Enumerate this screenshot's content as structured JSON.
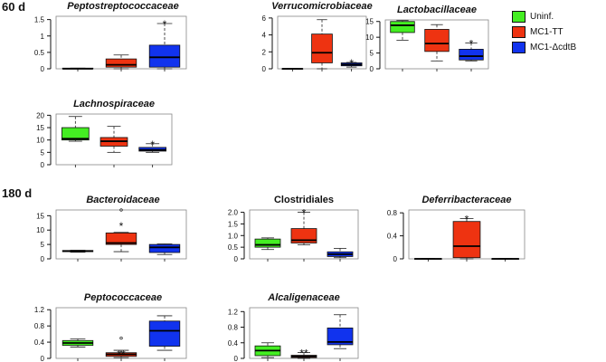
{
  "section_labels": {
    "top": "60 d",
    "bottom": "180 d"
  },
  "legend": [
    {
      "label": "Uninf.",
      "color": "#44ee22"
    },
    {
      "label": "MC1-TT",
      "color": "#ee3311"
    },
    {
      "label": "MC1-ΔcdtB",
      "color": "#1133ee"
    }
  ],
  "chart_data": [
    {
      "type": "box",
      "section": "60 d",
      "title": "Peptostreptococcaceae",
      "italic": true,
      "ylim": [
        0,
        1.6
      ],
      "yticks": [
        "0",
        "0.5",
        "1",
        "1.5"
      ],
      "ytick_values": [
        0,
        0.5,
        1,
        1.5
      ],
      "groups": [
        {
          "name": "Uninf.",
          "whisker_low": 0,
          "q1": 0,
          "median": 0,
          "q3": 0.02,
          "whisker_high": 0.02,
          "outliers": [],
          "sig": ""
        },
        {
          "name": "MC1-TT",
          "whisker_low": 0,
          "q1": 0.05,
          "median": 0.12,
          "q3": 0.3,
          "whisker_high": 0.42,
          "outliers": [],
          "sig": ""
        },
        {
          "name": "MC1-ΔcdtB",
          "whisker_low": 0,
          "q1": 0.05,
          "median": 0.35,
          "q3": 0.72,
          "whisker_high": 1.38,
          "outliers": [],
          "sig": "*"
        }
      ]
    },
    {
      "type": "box",
      "section": "60 d",
      "title": "Verrucomicrobiaceae",
      "italic": true,
      "ylim": [
        0,
        6.2
      ],
      "yticks": [
        "0",
        "2",
        "4",
        "6"
      ],
      "ytick_values": [
        0,
        2,
        4,
        6
      ],
      "groups": [
        {
          "name": "Uninf.",
          "whisker_low": 0,
          "q1": 0,
          "median": 0,
          "q3": 0.03,
          "whisker_high": 0.03,
          "outliers": [],
          "sig": ""
        },
        {
          "name": "MC1-TT",
          "whisker_low": 0,
          "q1": 0.7,
          "median": 1.9,
          "q3": 4.1,
          "whisker_high": 5.8,
          "outliers": [],
          "sig": ""
        },
        {
          "name": "MC1-ΔcdtB",
          "whisker_low": 0.2,
          "q1": 0.35,
          "median": 0.5,
          "q3": 0.7,
          "whisker_high": 0.75,
          "outliers": [],
          "sig": "*"
        }
      ]
    },
    {
      "type": "box",
      "section": "60 d",
      "title": "Lactobacillaceae",
      "italic": true,
      "ylim": [
        0,
        15.5
      ],
      "yticks": [
        "0",
        "5",
        "10",
        "15"
      ],
      "ytick_values": [
        0,
        5,
        10,
        15
      ],
      "groups": [
        {
          "name": "Uninf.",
          "whisker_low": 9,
          "q1": 11.5,
          "median": 13.8,
          "q3": 15,
          "whisker_high": 15.3,
          "outliers": [],
          "sig": ""
        },
        {
          "name": "MC1-TT",
          "whisker_low": 2.5,
          "q1": 5.5,
          "median": 8,
          "q3": 12.5,
          "whisker_high": 14,
          "outliers": [],
          "sig": ""
        },
        {
          "name": "MC1-ΔcdtB",
          "whisker_low": 2.5,
          "q1": 2.8,
          "median": 4,
          "q3": 6.2,
          "whisker_high": 8.2,
          "outliers": [],
          "sig": "*"
        }
      ]
    },
    {
      "type": "box",
      "section": "60 d",
      "title": "Lachnospiraceae",
      "italic": true,
      "ylim": [
        0,
        20.5
      ],
      "yticks": [
        "0",
        "5",
        "10",
        "15",
        "20"
      ],
      "ytick_values": [
        0,
        5,
        10,
        15,
        20
      ],
      "groups": [
        {
          "name": "Uninf.",
          "whisker_low": 9.5,
          "q1": 10,
          "median": 10.5,
          "q3": 15,
          "whisker_high": 19.5,
          "outliers": [],
          "sig": ""
        },
        {
          "name": "MC1-TT",
          "whisker_low": 5,
          "q1": 7.5,
          "median": 9.5,
          "q3": 11,
          "whisker_high": 15.5,
          "outliers": [],
          "sig": ""
        },
        {
          "name": "MC1-ΔcdtB",
          "whisker_low": 5,
          "q1": 5.5,
          "median": 6,
          "q3": 7,
          "whisker_high": 8.5,
          "outliers": [],
          "sig": "*"
        }
      ]
    },
    {
      "type": "box",
      "section": "180 d",
      "title": "Bacteroidaceae",
      "italic": true,
      "ylim": [
        0,
        17
      ],
      "yticks": [
        "0",
        "5",
        "10",
        "15"
      ],
      "ytick_values": [
        0,
        5,
        10,
        15
      ],
      "groups": [
        {
          "name": "Uninf.",
          "whisker_low": 2.3,
          "q1": 2.5,
          "median": 2.7,
          "q3": 2.9,
          "whisker_high": 3,
          "outliers": [],
          "sig": ""
        },
        {
          "name": "MC1-TT",
          "whisker_low": 2.5,
          "q1": 5,
          "median": 5.5,
          "q3": 9,
          "whisker_high": 9.2,
          "outliers": [
            17
          ],
          "sig": "*"
        },
        {
          "name": "MC1-ΔcdtB",
          "whisker_low": 1.5,
          "q1": 2.2,
          "median": 4,
          "q3": 5,
          "whisker_high": 5.2,
          "outliers": [],
          "sig": ""
        }
      ]
    },
    {
      "type": "box",
      "section": "180 d",
      "title": "Clostridiales",
      "italic": false,
      "ylim": [
        0,
        2.1
      ],
      "yticks": [
        "0",
        "0.5",
        "1.0",
        "1.5",
        "2.0"
      ],
      "ytick_values": [
        0,
        0.5,
        1,
        1.5,
        2
      ],
      "groups": [
        {
          "name": "Uninf.",
          "whisker_low": 0.4,
          "q1": 0.5,
          "median": 0.6,
          "q3": 0.85,
          "whisker_high": 0.9,
          "outliers": [],
          "sig": ""
        },
        {
          "name": "MC1-TT",
          "whisker_low": 0.6,
          "q1": 0.68,
          "median": 0.8,
          "q3": 1.3,
          "whisker_high": 2,
          "outliers": [],
          "sig": "*"
        },
        {
          "name": "MC1-ΔcdtB",
          "whisker_low": 0.05,
          "q1": 0.1,
          "median": 0.2,
          "q3": 0.3,
          "whisker_high": 0.45,
          "outliers": [],
          "sig": ""
        }
      ]
    },
    {
      "type": "box",
      "section": "180 d",
      "title": "Deferribacteraceae",
      "italic": true,
      "ylim": [
        0,
        0.85
      ],
      "yticks": [
        "0",
        "0.4",
        "0.8"
      ],
      "ytick_values": [
        0,
        0.4,
        0.8
      ],
      "groups": [
        {
          "name": "Uninf.",
          "whisker_low": 0,
          "q1": 0,
          "median": 0,
          "q3": 0.005,
          "whisker_high": 0.005,
          "outliers": [],
          "sig": ""
        },
        {
          "name": "MC1-TT",
          "whisker_low": 0,
          "q1": 0.02,
          "median": 0.22,
          "q3": 0.65,
          "whisker_high": 0.7,
          "outliers": [],
          "sig": "*"
        },
        {
          "name": "MC1-ΔcdtB",
          "whisker_low": 0,
          "q1": 0,
          "median": 0,
          "q3": 0.005,
          "whisker_high": 0.005,
          "outliers": [],
          "sig": ""
        }
      ]
    },
    {
      "type": "box",
      "section": "180 d",
      "title": "Peptococcaceae",
      "italic": true,
      "ylim": [
        0,
        1.25
      ],
      "yticks": [
        "0",
        "0.4",
        "0.8",
        "1.2"
      ],
      "ytick_values": [
        0,
        0.4,
        0.8,
        1.2
      ],
      "groups": [
        {
          "name": "Uninf.",
          "whisker_low": 0.28,
          "q1": 0.32,
          "median": 0.38,
          "q3": 0.44,
          "whisker_high": 0.48,
          "outliers": [],
          "sig": ""
        },
        {
          "name": "MC1-TT",
          "whisker_low": 0.02,
          "q1": 0.05,
          "median": 0.1,
          "q3": 0.14,
          "whisker_high": 0.2,
          "outliers": [
            0.5
          ],
          "sig": "**"
        },
        {
          "name": "MC1-ΔcdtB",
          "whisker_low": 0.2,
          "q1": 0.3,
          "median": 0.68,
          "q3": 0.92,
          "whisker_high": 1.05,
          "outliers": [],
          "sig": ""
        }
      ]
    },
    {
      "type": "box",
      "section": "180 d",
      "title": "Alcaligenaceae",
      "italic": true,
      "ylim": [
        0,
        1.3
      ],
      "yticks": [
        "0",
        "0.4",
        "0.8",
        "1.2"
      ],
      "ytick_values": [
        0,
        0.4,
        0.8,
        1.2
      ],
      "groups": [
        {
          "name": "Uninf.",
          "whisker_low": 0.02,
          "q1": 0.07,
          "median": 0.2,
          "q3": 0.32,
          "whisker_high": 0.4,
          "outliers": [],
          "sig": ""
        },
        {
          "name": "MC1-TT",
          "whisker_low": 0,
          "q1": 0.02,
          "median": 0.05,
          "q3": 0.08,
          "whisker_high": 0.15,
          "outliers": [],
          "sig": "**"
        },
        {
          "name": "MC1-ΔcdtB",
          "whisker_low": 0.25,
          "q1": 0.35,
          "median": 0.42,
          "q3": 0.78,
          "whisker_high": 1.12,
          "outliers": [],
          "sig": ""
        }
      ]
    }
  ]
}
